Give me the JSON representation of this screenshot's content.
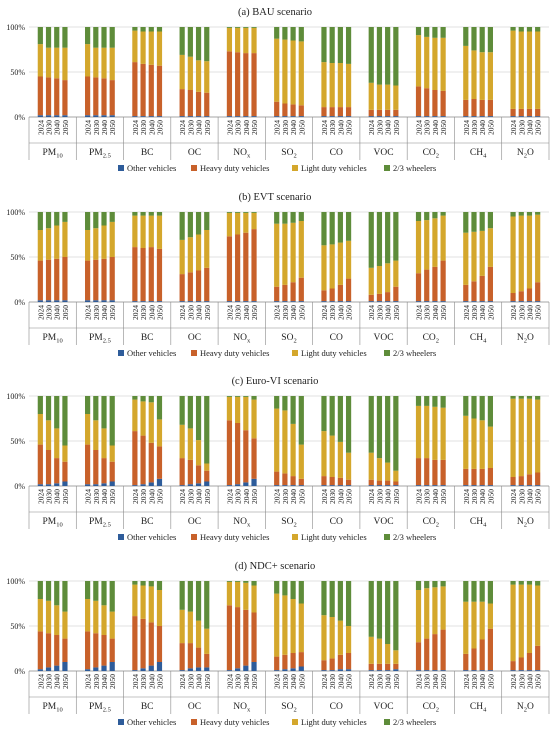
{
  "colors": {
    "other": "#2e5c9a",
    "heavy": "#c8612a",
    "light": "#d4a72c",
    "wheelers": "#5e8c3a"
  },
  "legend_labels": [
    "Other vehicles",
    "Heavy duty vehicles",
    "Light duty vehicles",
    "2/3 wheelers"
  ],
  "chart_data": [
    {
      "type": "bar",
      "stacked": true,
      "normalized": true,
      "title": "(a) BAU scenario",
      "yticks": [
        "0%",
        "50%",
        "100%"
      ],
      "ylim": [
        0,
        100
      ],
      "years": [
        "2024",
        "2030",
        "2040",
        "2050"
      ],
      "pollutants": [
        "PM10",
        "PM2.5",
        "BC",
        "OC",
        "NOx",
        "SO2",
        "CO",
        "VOC",
        "CO2",
        "CH4",
        "N2O"
      ],
      "series_keys": [
        "other",
        "heavy",
        "light",
        "wheelers"
      ],
      "data": [
        [
          [
            2,
            43,
            36,
            19
          ],
          [
            2,
            42,
            33,
            23
          ],
          [
            2,
            41,
            34,
            23
          ],
          [
            2,
            39,
            36,
            23
          ]
        ],
        [
          [
            2,
            43,
            36,
            19
          ],
          [
            2,
            42,
            33,
            23
          ],
          [
            2,
            41,
            34,
            23
          ],
          [
            2,
            39,
            36,
            23
          ]
        ],
        [
          [
            1,
            60,
            35,
            4
          ],
          [
            1,
            58,
            36,
            5
          ],
          [
            1,
            57,
            37,
            5
          ],
          [
            1,
            56,
            38,
            5
          ]
        ],
        [
          [
            1,
            30,
            38,
            31
          ],
          [
            1,
            29,
            37,
            33
          ],
          [
            1,
            27,
            35,
            37
          ],
          [
            1,
            26,
            35,
            38
          ]
        ],
        [
          [
            1,
            72,
            26,
            1
          ],
          [
            1,
            71,
            27,
            1
          ],
          [
            1,
            70,
            28,
            1
          ],
          [
            1,
            70,
            28,
            1
          ]
        ],
        [
          [
            1,
            16,
            70,
            13
          ],
          [
            1,
            14,
            71,
            14
          ],
          [
            1,
            13,
            71,
            15
          ],
          [
            1,
            12,
            71,
            16
          ]
        ],
        [
          [
            1,
            10,
            50,
            39
          ],
          [
            1,
            10,
            49,
            40
          ],
          [
            1,
            10,
            49,
            40
          ],
          [
            1,
            10,
            48,
            41
          ]
        ],
        [
          [
            1,
            7,
            30,
            62
          ],
          [
            1,
            7,
            28,
            64
          ],
          [
            1,
            7,
            28,
            64
          ],
          [
            1,
            7,
            27,
            65
          ]
        ],
        [
          [
            1,
            33,
            57,
            9
          ],
          [
            1,
            31,
            57,
            11
          ],
          [
            1,
            29,
            58,
            12
          ],
          [
            1,
            28,
            59,
            12
          ]
        ],
        [
          [
            1,
            18,
            60,
            21
          ],
          [
            1,
            19,
            54,
            26
          ],
          [
            1,
            18,
            53,
            28
          ],
          [
            1,
            18,
            53,
            28
          ]
        ],
        [
          [
            1,
            8,
            87,
            4
          ],
          [
            1,
            8,
            86,
            5
          ],
          [
            1,
            8,
            86,
            5
          ],
          [
            1,
            8,
            86,
            5
          ]
        ]
      ]
    },
    {
      "type": "bar",
      "stacked": true,
      "normalized": true,
      "title": "(b) EVT scenario",
      "yticks": [
        "0%",
        "50%",
        "100%"
      ],
      "ylim": [
        0,
        100
      ],
      "years": [
        "2024",
        "2030",
        "2040",
        "2050"
      ],
      "pollutants": [
        "PM10",
        "PM2.5",
        "BC",
        "OC",
        "NOx",
        "SO2",
        "CO",
        "VOC",
        "CO2",
        "CH4",
        "N2O"
      ],
      "series_keys": [
        "other",
        "heavy",
        "light",
        "wheelers"
      ],
      "data": [
        [
          [
            2,
            44,
            34,
            20
          ],
          [
            2,
            45,
            35,
            18
          ],
          [
            2,
            46,
            37,
            15
          ],
          [
            2,
            48,
            39,
            11
          ]
        ],
        [
          [
            2,
            44,
            34,
            20
          ],
          [
            2,
            45,
            35,
            18
          ],
          [
            2,
            46,
            37,
            15
          ],
          [
            2,
            48,
            39,
            11
          ]
        ],
        [
          [
            1,
            60,
            35,
            4
          ],
          [
            1,
            59,
            36,
            4
          ],
          [
            1,
            60,
            35,
            4
          ],
          [
            1,
            58,
            37,
            4
          ]
        ],
        [
          [
            1,
            30,
            38,
            31
          ],
          [
            1,
            32,
            39,
            28
          ],
          [
            1,
            34,
            40,
            25
          ],
          [
            1,
            37,
            42,
            20
          ]
        ],
        [
          [
            1,
            72,
            26,
            1
          ],
          [
            1,
            74,
            24,
            1
          ],
          [
            1,
            76,
            22,
            1
          ],
          [
            1,
            80,
            18,
            1
          ]
        ],
        [
          [
            1,
            16,
            70,
            13
          ],
          [
            1,
            18,
            68,
            13
          ],
          [
            1,
            21,
            66,
            12
          ],
          [
            1,
            26,
            63,
            10
          ]
        ],
        [
          [
            1,
            12,
            50,
            37
          ],
          [
            1,
            14,
            49,
            36
          ],
          [
            1,
            18,
            47,
            34
          ],
          [
            1,
            25,
            42,
            32
          ]
        ],
        [
          [
            1,
            7,
            30,
            62
          ],
          [
            1,
            8,
            31,
            60
          ],
          [
            1,
            10,
            32,
            57
          ],
          [
            1,
            16,
            29,
            54
          ]
        ],
        [
          [
            1,
            31,
            58,
            10
          ],
          [
            1,
            35,
            55,
            9
          ],
          [
            1,
            38,
            54,
            7
          ],
          [
            1,
            45,
            50,
            4
          ]
        ],
        [
          [
            1,
            18,
            58,
            23
          ],
          [
            1,
            22,
            55,
            22
          ],
          [
            1,
            28,
            50,
            21
          ],
          [
            1,
            38,
            43,
            18
          ]
        ],
        [
          [
            1,
            9,
            85,
            5
          ],
          [
            1,
            11,
            84,
            4
          ],
          [
            1,
            14,
            81,
            4
          ],
          [
            1,
            21,
            75,
            3
          ]
        ]
      ]
    },
    {
      "type": "bar",
      "stacked": true,
      "normalized": true,
      "title": "(c) Euro-VI scenario",
      "yticks": [
        "0%",
        "50%",
        "100%"
      ],
      "ylim": [
        0,
        100
      ],
      "years": [
        "2024",
        "2030",
        "2040",
        "2050"
      ],
      "pollutants": [
        "PM10",
        "PM2.5",
        "BC",
        "OC",
        "NOx",
        "SO2",
        "CO",
        "VOC",
        "CO2",
        "CH4",
        "N2O"
      ],
      "series_keys": [
        "other",
        "heavy",
        "light",
        "wheelers"
      ],
      "data": [
        [
          [
            2,
            44,
            34,
            20
          ],
          [
            2,
            38,
            33,
            27
          ],
          [
            3,
            28,
            33,
            36
          ],
          [
            5,
            22,
            18,
            55
          ]
        ],
        [
          [
            2,
            44,
            34,
            20
          ],
          [
            2,
            38,
            33,
            27
          ],
          [
            3,
            28,
            33,
            36
          ],
          [
            5,
            22,
            18,
            55
          ]
        ],
        [
          [
            1,
            60,
            35,
            4
          ],
          [
            2,
            54,
            38,
            6
          ],
          [
            4,
            44,
            45,
            7
          ],
          [
            8,
            36,
            30,
            26
          ]
        ],
        [
          [
            1,
            30,
            37,
            32
          ],
          [
            2,
            27,
            35,
            36
          ],
          [
            3,
            20,
            28,
            49
          ],
          [
            5,
            12,
            8,
            75
          ]
        ],
        [
          [
            1,
            72,
            26,
            1
          ],
          [
            2,
            68,
            29,
            1
          ],
          [
            4,
            58,
            37,
            1
          ],
          [
            8,
            45,
            43,
            4
          ]
        ],
        [
          [
            1,
            15,
            70,
            14
          ],
          [
            1,
            13,
            70,
            16
          ],
          [
            1,
            10,
            58,
            31
          ],
          [
            1,
            7,
            38,
            54
          ]
        ],
        [
          [
            1,
            10,
            50,
            39
          ],
          [
            1,
            9,
            46,
            44
          ],
          [
            1,
            8,
            40,
            51
          ],
          [
            1,
            6,
            30,
            63
          ]
        ],
        [
          [
            1,
            6,
            30,
            63
          ],
          [
            1,
            5,
            25,
            69
          ],
          [
            1,
            5,
            20,
            74
          ],
          [
            1,
            4,
            12,
            83
          ]
        ],
        [
          [
            1,
            30,
            58,
            11
          ],
          [
            1,
            30,
            58,
            11
          ],
          [
            1,
            28,
            59,
            12
          ],
          [
            1,
            28,
            58,
            13
          ]
        ],
        [
          [
            1,
            18,
            59,
            22
          ],
          [
            1,
            18,
            56,
            25
          ],
          [
            1,
            18,
            54,
            27
          ],
          [
            1,
            19,
            46,
            34
          ]
        ],
        [
          [
            1,
            9,
            87,
            3
          ],
          [
            1,
            10,
            86,
            3
          ],
          [
            1,
            12,
            84,
            3
          ],
          [
            1,
            14,
            81,
            4
          ]
        ]
      ]
    },
    {
      "type": "bar",
      "stacked": true,
      "normalized": true,
      "title": "(d) NDC+ scenario",
      "yticks": [
        "0%",
        "50%",
        "100%"
      ],
      "ylim": [
        0,
        100
      ],
      "years": [
        "2024",
        "2030",
        "2040",
        "2050"
      ],
      "pollutants": [
        "PM10",
        "PM2.5",
        "BC",
        "OC",
        "NOx",
        "SO2",
        "CO",
        "VOC",
        "CO2",
        "CH4",
        "N2O"
      ],
      "series_keys": [
        "other",
        "heavy",
        "light",
        "wheelers"
      ],
      "data": [
        [
          [
            2,
            42,
            36,
            20
          ],
          [
            4,
            38,
            36,
            22
          ],
          [
            6,
            34,
            33,
            27
          ],
          [
            10,
            26,
            30,
            34
          ]
        ],
        [
          [
            2,
            42,
            36,
            20
          ],
          [
            4,
            38,
            36,
            22
          ],
          [
            6,
            34,
            33,
            27
          ],
          [
            10,
            26,
            30,
            34
          ]
        ],
        [
          [
            1,
            60,
            35,
            4
          ],
          [
            3,
            55,
            37,
            5
          ],
          [
            6,
            48,
            40,
            6
          ],
          [
            10,
            40,
            40,
            10
          ]
        ],
        [
          [
            1,
            30,
            37,
            32
          ],
          [
            3,
            28,
            35,
            34
          ],
          [
            4,
            22,
            30,
            44
          ],
          [
            4,
            15,
            28,
            53
          ]
        ],
        [
          [
            1,
            72,
            26,
            1
          ],
          [
            3,
            68,
            28,
            1
          ],
          [
            6,
            62,
            30,
            2
          ],
          [
            10,
            55,
            30,
            5
          ]
        ],
        [
          [
            1,
            15,
            70,
            14
          ],
          [
            2,
            16,
            66,
            16
          ],
          [
            3,
            17,
            60,
            20
          ],
          [
            5,
            16,
            54,
            25
          ]
        ],
        [
          [
            1,
            11,
            50,
            38
          ],
          [
            1,
            13,
            46,
            40
          ],
          [
            2,
            16,
            38,
            44
          ],
          [
            2,
            18,
            30,
            50
          ]
        ],
        [
          [
            1,
            7,
            30,
            62
          ],
          [
            1,
            7,
            28,
            64
          ],
          [
            1,
            7,
            22,
            70
          ],
          [
            2,
            6,
            15,
            77
          ]
        ],
        [
          [
            1,
            31,
            58,
            10
          ],
          [
            1,
            35,
            56,
            8
          ],
          [
            1,
            40,
            52,
            7
          ],
          [
            1,
            45,
            48,
            6
          ]
        ],
        [
          [
            1,
            18,
            58,
            23
          ],
          [
            1,
            24,
            52,
            23
          ],
          [
            1,
            34,
            42,
            23
          ],
          [
            1,
            46,
            28,
            25
          ]
        ],
        [
          [
            1,
            10,
            85,
            4
          ],
          [
            1,
            14,
            81,
            4
          ],
          [
            1,
            19,
            76,
            4
          ],
          [
            1,
            27,
            67,
            5
          ]
        ]
      ]
    }
  ]
}
